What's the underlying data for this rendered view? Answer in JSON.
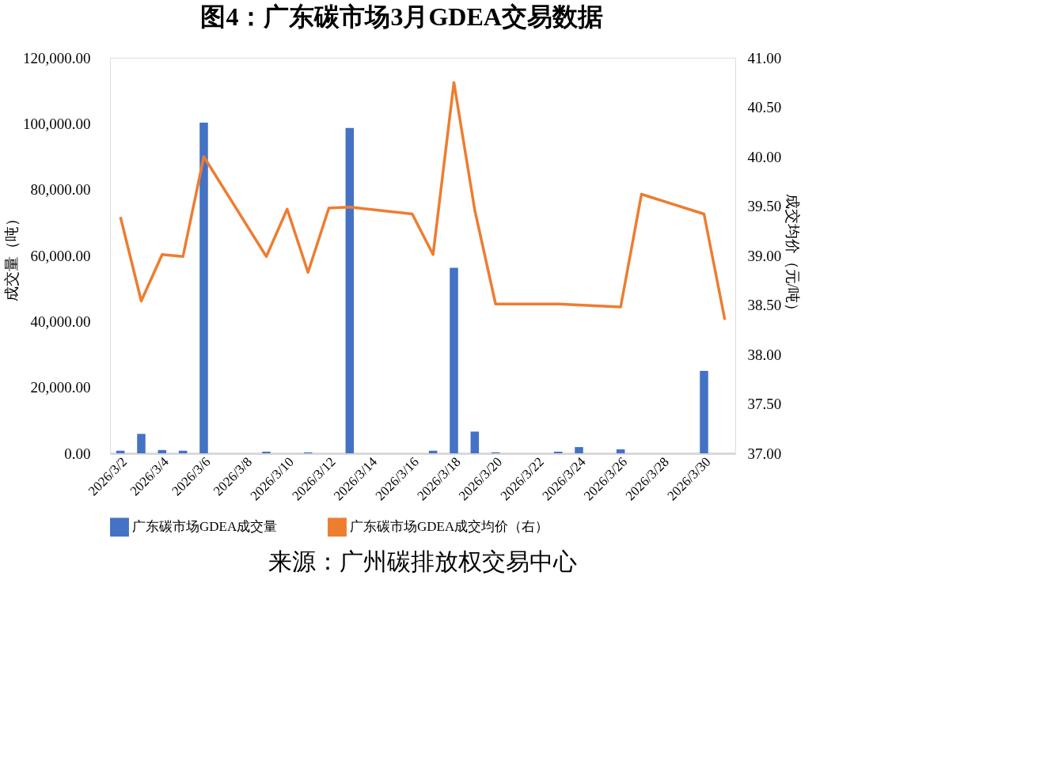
{
  "chart_data": {
    "type": "bar",
    "title": "图4：广东碳市场3月GDEA交易数据",
    "categories": [
      "2026/3/2",
      null,
      "2026/3/4",
      null,
      "2026/3/6",
      null,
      "2026/3/8",
      null,
      "2026/3/10",
      null,
      "2026/3/12",
      null,
      "2026/3/14",
      null,
      "2026/3/16",
      null,
      "2026/3/18",
      null,
      "2026/3/20",
      null,
      "2026/3/22",
      null,
      "2026/3/24",
      null,
      "2026/3/26",
      null,
      "2026/3/28",
      null,
      "2026/3/30",
      null
    ],
    "series": [
      {
        "name": "广东碳市场GDEA成交量",
        "color": "#4472c4",
        "values": [
          800,
          5900,
          1000,
          800,
          100300,
          null,
          null,
          500,
          null,
          300,
          null,
          98700,
          null,
          null,
          null,
          800,
          56300,
          6600,
          300,
          null,
          null,
          500,
          1900,
          null,
          1200,
          null,
          null,
          null,
          25000,
          null
        ]
      },
      {
        "name": "广东碳市场GDEA成交均价（右）",
        "type": "line",
        "axis": "y2",
        "color": "#ed7d31",
        "values": [
          39.39,
          38.54,
          39.01,
          38.99,
          40.0,
          null,
          null,
          38.99,
          39.47,
          38.83,
          39.48,
          39.49,
          null,
          null,
          39.42,
          39.01,
          40.75,
          39.46,
          38.51,
          null,
          null,
          38.51,
          38.5,
          38.49,
          38.48,
          39.62,
          null,
          null,
          39.42,
          38.35
        ]
      }
    ],
    "ylabel": "成交量（吨）",
    "y2label": "成交均价（元/吨）",
    "ylim": [
      0,
      120000
    ],
    "yticks": [
      {
        "value": 0,
        "label": "0.00"
      },
      {
        "value": 20000,
        "label": "20,000.00"
      },
      {
        "value": 40000,
        "label": "40,000.00"
      },
      {
        "value": 60000,
        "label": "60,000.00"
      },
      {
        "value": 80000,
        "label": "80,000.00"
      },
      {
        "value": 100000,
        "label": "100,000.00"
      },
      {
        "value": 120000,
        "label": "120,000.00"
      }
    ],
    "y2lim": [
      37,
      41
    ],
    "y2ticks": [
      {
        "value": 37,
        "label": "37.00"
      },
      {
        "value": 37.5,
        "label": "37.50"
      },
      {
        "value": 38,
        "label": "38.00"
      },
      {
        "value": 38.5,
        "label": "38.50"
      },
      {
        "value": 39,
        "label": "39.00"
      },
      {
        "value": 39.5,
        "label": "39.50"
      },
      {
        "value": 40,
        "label": "40.00"
      },
      {
        "value": 40.5,
        "label": "40.50"
      },
      {
        "value": 41,
        "label": "41.00"
      }
    ],
    "grid": false,
    "legend": "bottom",
    "marker": "none",
    "annotations": [
      "来源：广州碳排放权交易中心"
    ]
  }
}
